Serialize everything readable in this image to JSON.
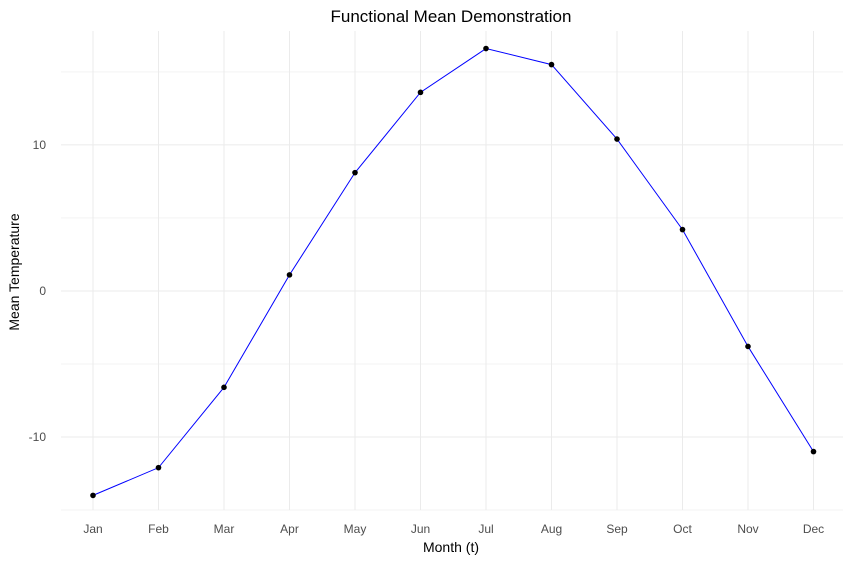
{
  "chart_data": {
    "type": "line",
    "title": "Functional Mean Demonstration",
    "xlabel": "Month (t)",
    "ylabel": "Mean Temperature",
    "categories": [
      "Jan",
      "Feb",
      "Mar",
      "Apr",
      "May",
      "Jun",
      "Jul",
      "Aug",
      "Sep",
      "Oct",
      "Nov",
      "Dec"
    ],
    "series": [
      {
        "values": [
          -14.0,
          -12.1,
          -6.6,
          1.1,
          8.1,
          13.6,
          16.6,
          15.5,
          10.4,
          4.2,
          -3.8,
          -11.0
        ],
        "line_color": "#0000ff",
        "point_color": "#000000"
      }
    ],
    "yticks": [
      -10,
      0,
      10
    ],
    "ytick_labels": [
      "-10",
      "0",
      "10"
    ],
    "ylim": [
      -15.0,
      17.8
    ],
    "grid": true
  }
}
